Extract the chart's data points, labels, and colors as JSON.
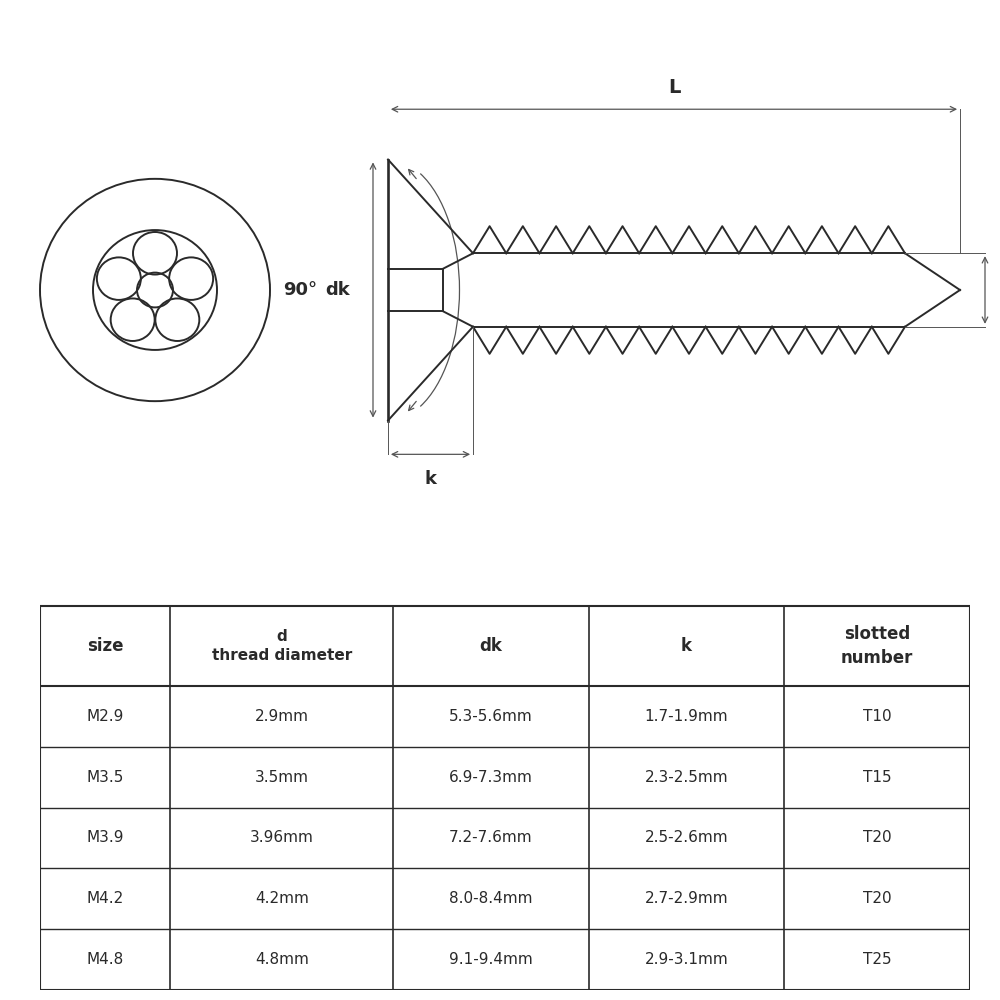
{
  "bg_color": "#ffffff",
  "line_color": "#2a2a2a",
  "dim_color": "#555555",
  "table_headers": [
    "size",
    "d\nthread diameter",
    "dk",
    "k",
    "slotted\nnumber"
  ],
  "table_rows": [
    [
      "M2.9",
      "2.9mm",
      "5.3-5.6mm",
      "1.7-1.9mm",
      "T10"
    ],
    [
      "M3.5",
      "3.5mm",
      "6.9-7.3mm",
      "2.3-2.5mm",
      "T15"
    ],
    [
      "M3.9",
      "3.96mm",
      "7.2-7.6mm",
      "2.5-2.6mm",
      "T20"
    ],
    [
      "M4.2",
      "4.2mm",
      "8.0-8.4mm",
      "2.7-2.9mm",
      "T20"
    ],
    [
      "M4.8",
      "4.8mm",
      "9.1-9.4mm",
      "2.9-3.1mm",
      "T25"
    ]
  ],
  "figsize": [
    10,
    10
  ],
  "dpi": 100
}
